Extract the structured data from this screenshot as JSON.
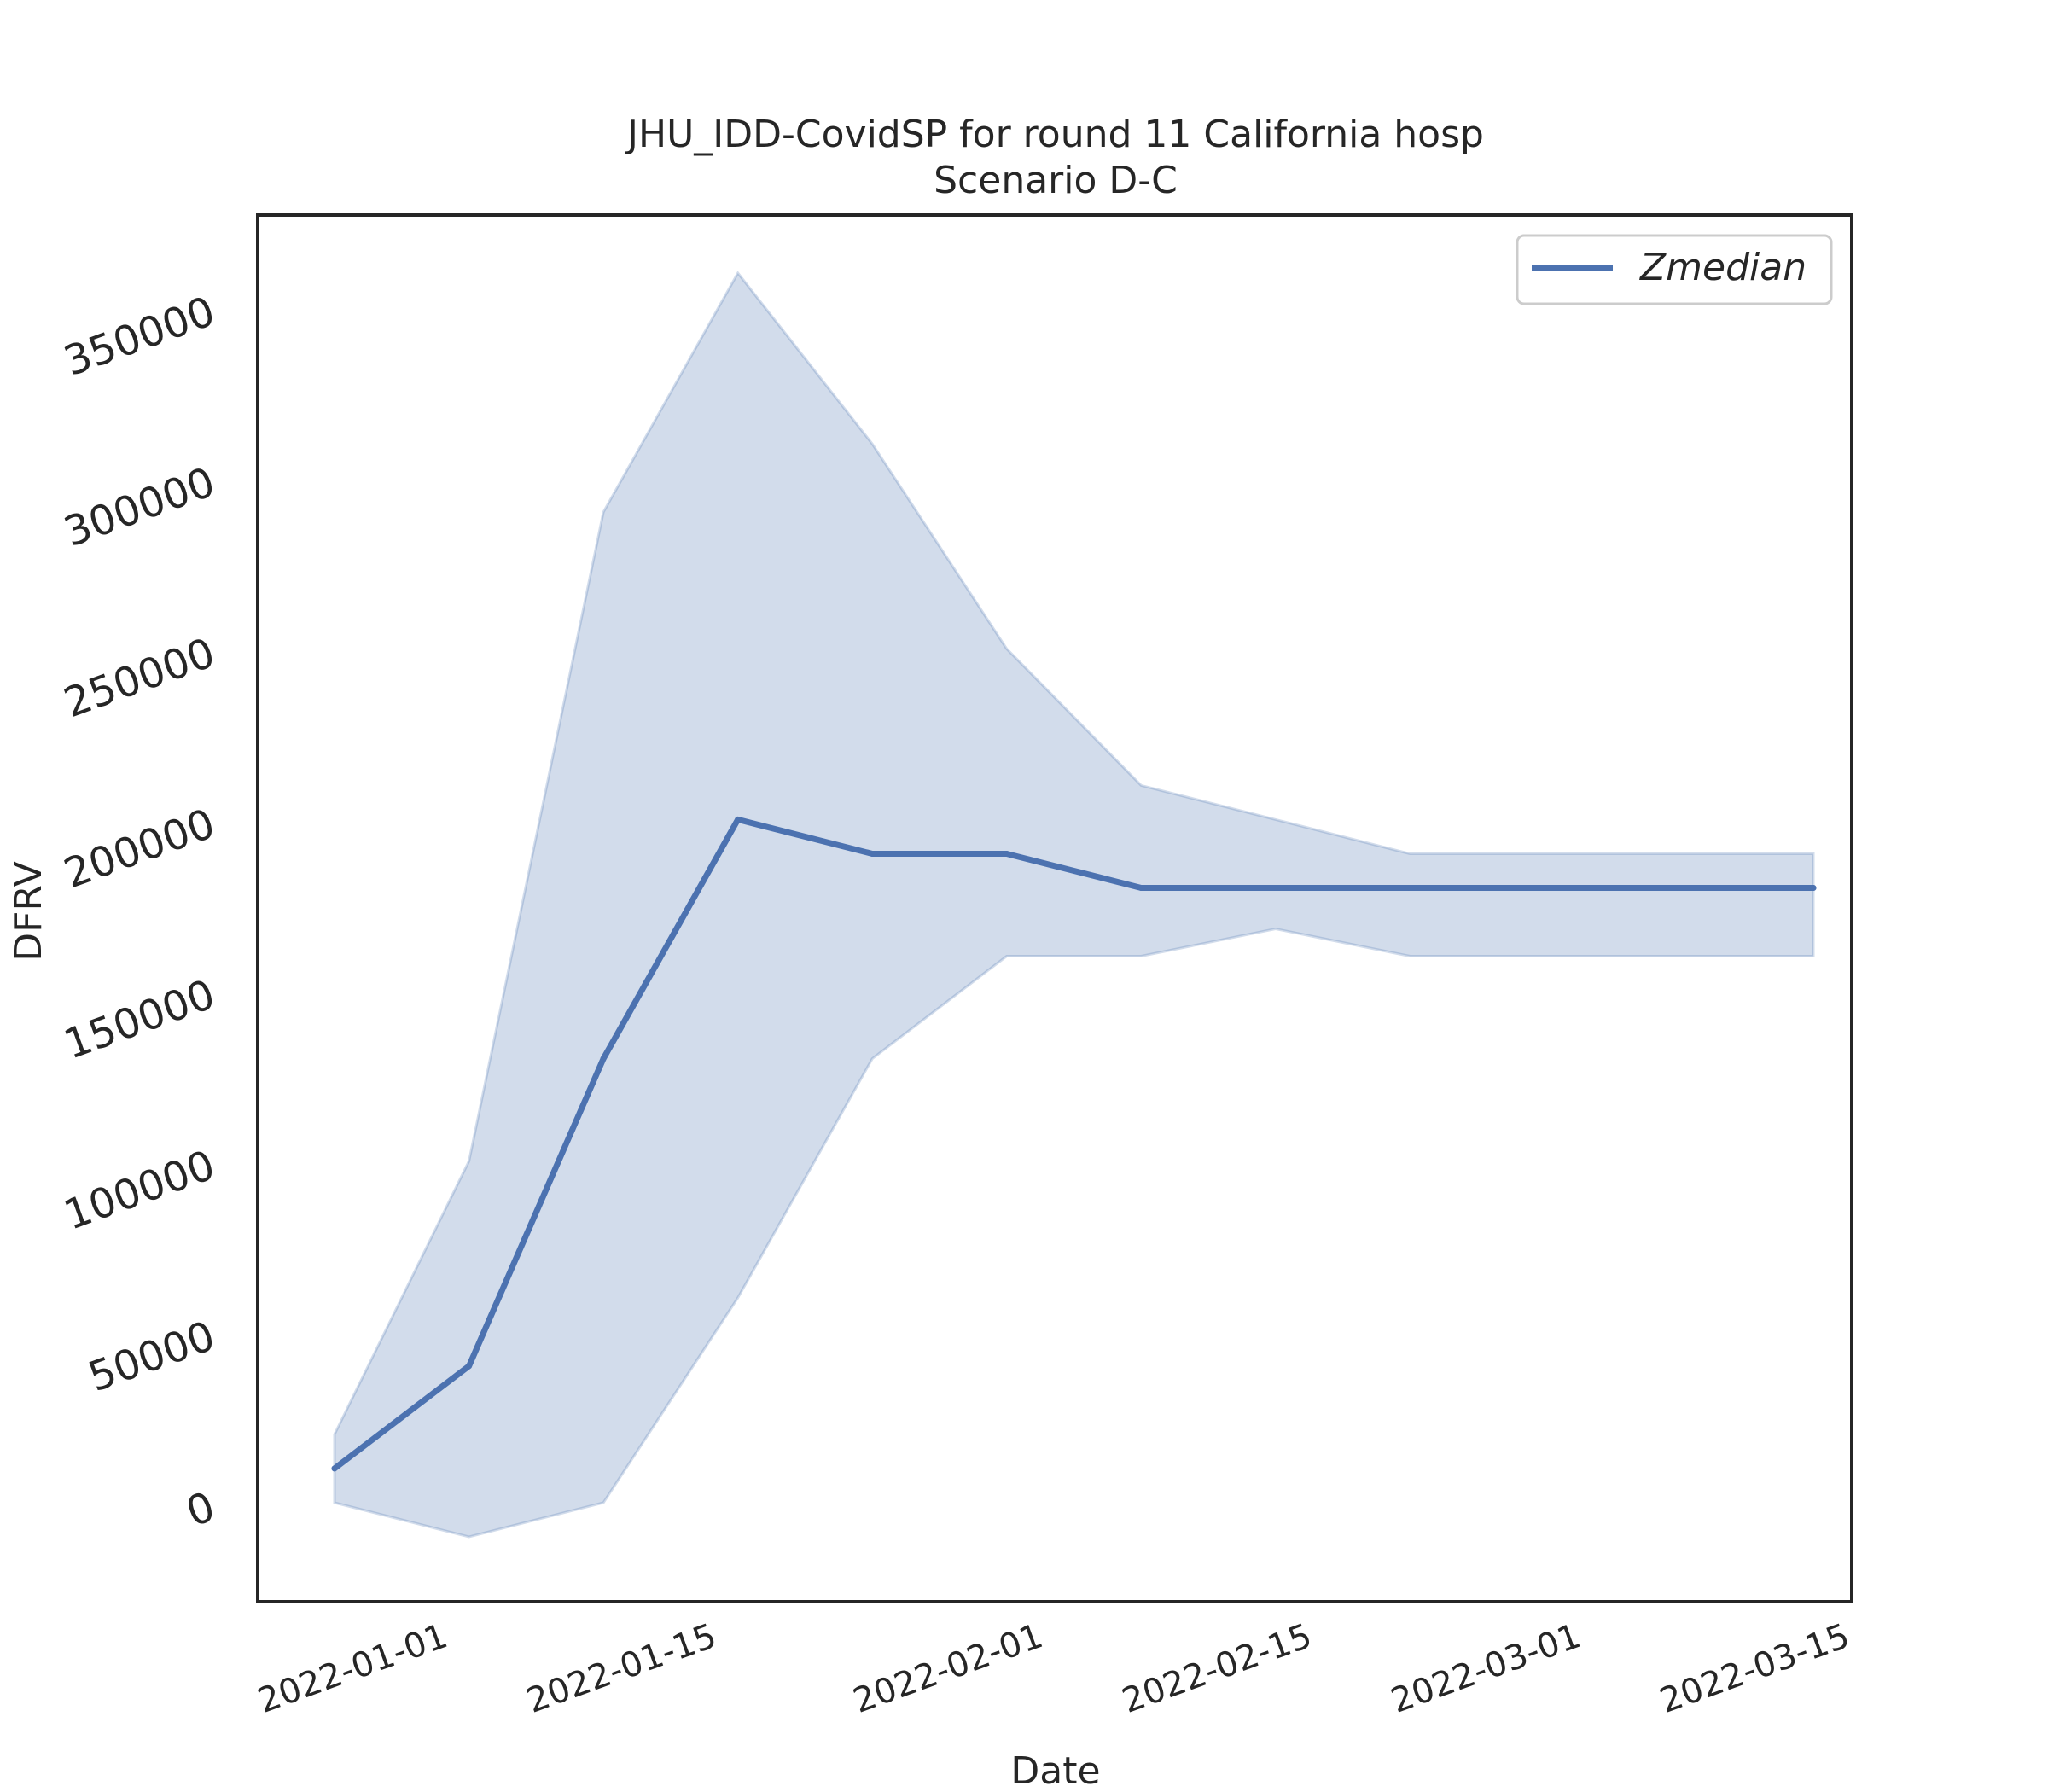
{
  "chart_data": {
    "type": "line",
    "title": "JHU_IDD-CovidSP for round 11 California hosp",
    "subtitle": "Scenario D-C",
    "xlabel": "Date",
    "ylabel": "DFRV",
    "x_tick_labels": [
      "2022-01-01",
      "2022-01-15",
      "2022-02-01",
      "2022-02-15",
      "2022-03-01",
      "2022-03-15"
    ],
    "y_tick_labels": [
      "0",
      "50000",
      "100000",
      "150000",
      "200000",
      "250000",
      "300000",
      "350000"
    ],
    "y_tick_values": [
      0,
      50000,
      100000,
      150000,
      200000,
      250000,
      300000,
      350000
    ],
    "ylim": [
      -28000,
      378000
    ],
    "xlim": [
      "2021-12-22",
      "2022-03-15"
    ],
    "x": [
      "2021-12-26",
      "2022-01-02",
      "2022-01-09",
      "2022-01-16",
      "2022-01-23",
      "2022-01-30",
      "2022-02-06",
      "2022-02-13",
      "2022-02-20",
      "2022-02-27",
      "2022-03-06",
      "2022-03-13"
    ],
    "series": [
      {
        "name": "Zmedian",
        "color": "#4c72b0",
        "values": [
          11000,
          41000,
          131000,
          201000,
          191000,
          191000,
          181000,
          181000,
          181000,
          181000,
          181000,
          181000
        ]
      }
    ],
    "band": {
      "color": "#4c72b0",
      "lower": [
        1000,
        -9000,
        1000,
        61000,
        131000,
        161000,
        161000,
        169000,
        161000,
        161000,
        161000,
        161000
      ],
      "upper": [
        21000,
        101000,
        291000,
        361000,
        311000,
        251000,
        211000,
        201000,
        191000,
        191000,
        191000,
        191000
      ]
    },
    "legend": {
      "position": "upper right"
    },
    "grid": false
  }
}
